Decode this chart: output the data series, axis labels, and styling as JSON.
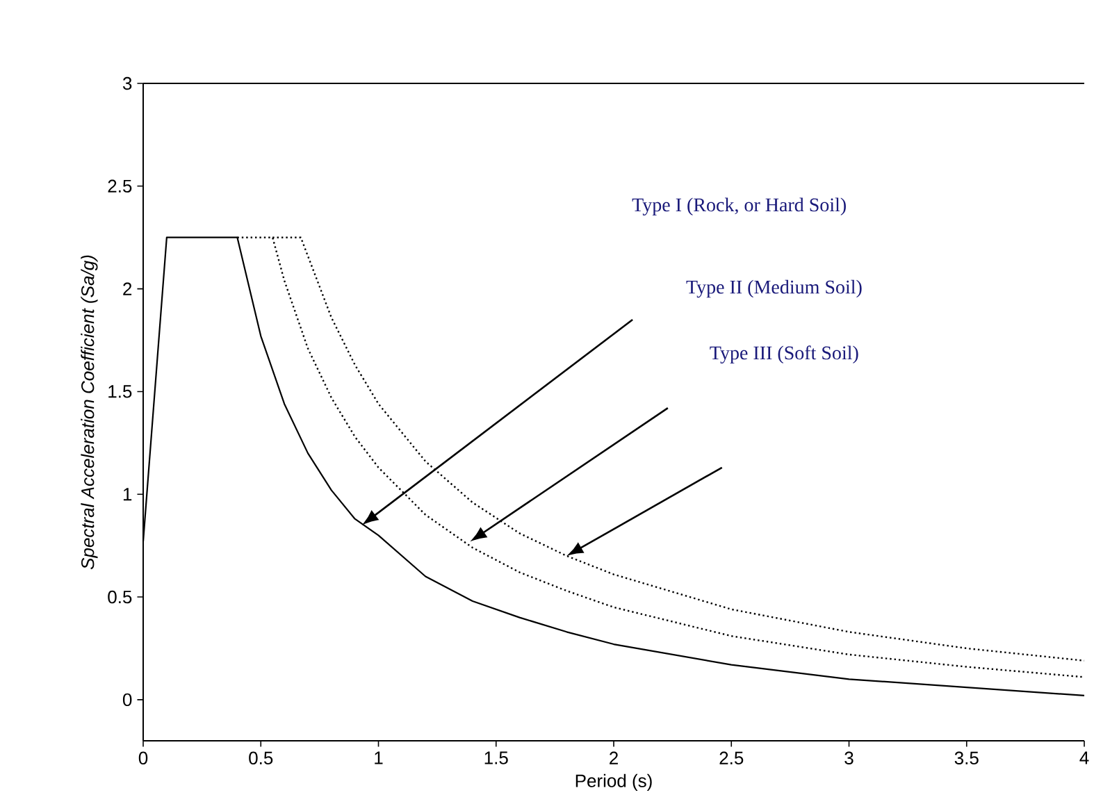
{
  "chart_data": {
    "type": "line",
    "xlabel": "Period (s)",
    "ylabel": "Spectral Acceleration  Coefficient (Sa/g)",
    "xlim": [
      0,
      4
    ],
    "xticks": [
      0,
      0.5,
      1,
      1.5,
      2,
      2.5,
      3,
      3.5,
      4
    ],
    "ylim": [
      -0.2,
      3
    ],
    "yticks": [
      0,
      0.5,
      1,
      1.5,
      2,
      2.5,
      3
    ],
    "series": [
      {
        "color": "#000000",
        "line_style": "solid",
        "x": [
          0,
          0.1,
          0.4,
          0.5,
          0.6,
          0.7,
          0.8,
          0.9,
          1.0,
          1.2,
          1.4,
          1.6,
          1.8,
          2.0,
          2.5,
          3.0,
          3.5,
          4.0
        ],
        "values": [
          0.77,
          2.25,
          2.25,
          1.77,
          1.44,
          1.2,
          1.02,
          0.88,
          0.8,
          0.6,
          0.48,
          0.4,
          0.33,
          0.27,
          0.17,
          0.1,
          0.06,
          0.02
        ]
      },
      {
        "color": "#000000",
        "line_style": "dotted",
        "x": [
          0.4,
          0.55,
          0.6,
          0.7,
          0.8,
          0.9,
          1.0,
          1.2,
          1.4,
          1.6,
          1.8,
          2.0,
          2.5,
          3.0,
          3.5,
          4.0
        ],
        "values": [
          2.25,
          2.25,
          2.04,
          1.71,
          1.47,
          1.28,
          1.13,
          0.9,
          0.74,
          0.62,
          0.53,
          0.45,
          0.31,
          0.22,
          0.16,
          0.11
        ]
      },
      {
        "color": "#000000",
        "line_style": "dotted",
        "x": [
          0.55,
          0.67,
          0.7,
          0.8,
          0.9,
          1.0,
          1.2,
          1.4,
          1.6,
          1.8,
          2.0,
          2.5,
          3.0,
          3.5,
          4.0
        ],
        "values": [
          2.25,
          2.25,
          2.16,
          1.86,
          1.63,
          1.44,
          1.16,
          0.96,
          0.81,
          0.7,
          0.61,
          0.44,
          0.33,
          0.25,
          0.19
        ]
      }
    ],
    "annotations": [
      "Type I (Rock, or Hard Soil)",
      "Type II (Medium Soil)",
      "Type III (Soft Soil)"
    ]
  }
}
